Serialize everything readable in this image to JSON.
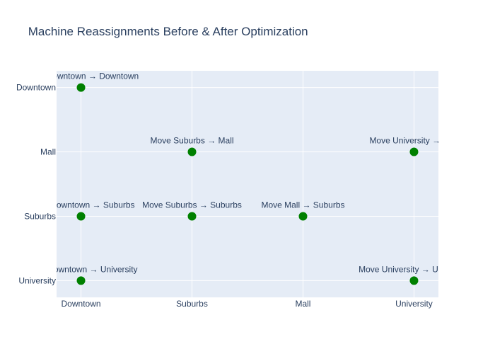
{
  "chart_data": {
    "type": "scatter",
    "title": "⁠ Machine Reassignments Before & After Optimization",
    "title_icon": "lightbulb-icon",
    "xlabel": "",
    "ylabel": "",
    "x_categories": [
      "Downtown",
      "Suburbs",
      "Mall",
      "University"
    ],
    "y_categories": [
      "University",
      "Suburbs",
      "Mall",
      "Downtown"
    ],
    "points": [
      {
        "x": "Downtown",
        "y": "Downtown",
        "label": "Move Downtown → Downtown"
      },
      {
        "x": "Suburbs",
        "y": "Mall",
        "label": "Move Suburbs → Mall"
      },
      {
        "x": "University",
        "y": "Mall",
        "label": "Move University → Mall"
      },
      {
        "x": "Downtown",
        "y": "Suburbs",
        "label": "Move Downtown → Suburbs"
      },
      {
        "x": "Suburbs",
        "y": "Suburbs",
        "label": "Move Suburbs → Suburbs"
      },
      {
        "x": "Mall",
        "y": "Suburbs",
        "label": "Move Mall → Suburbs"
      },
      {
        "x": "Downtown",
        "y": "University",
        "label": "Move Downtown → University"
      },
      {
        "x": "University",
        "y": "University",
        "label": "Move University → University"
      }
    ],
    "marker_color": "#008000",
    "plot_background": "#e5ecf6",
    "grid": true,
    "legend": "none"
  }
}
